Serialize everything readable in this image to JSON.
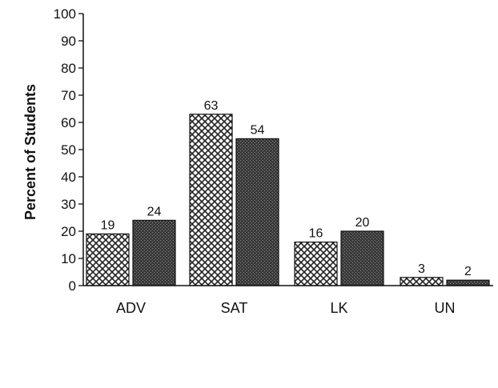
{
  "chart_data": {
    "type": "bar",
    "categories": [
      "ADV",
      "SAT",
      "LK",
      "UN"
    ],
    "series": [
      {
        "values": [
          19,
          63,
          16,
          3
        ],
        "pattern": "crosshatch",
        "color": "#ffffff"
      },
      {
        "values": [
          24,
          54,
          20,
          2
        ],
        "pattern": "dark-stipple",
        "color": "#3a3a3a"
      }
    ],
    "title": "",
    "xlabel": "",
    "ylabel": "Percent of Students",
    "ylim": [
      0,
      100
    ],
    "yticks": [
      0,
      10,
      20,
      30,
      40,
      50,
      60,
      70,
      80,
      90,
      100
    ],
    "data_labels": [
      [
        "19",
        "63",
        "16",
        "3"
      ],
      [
        "24",
        "54",
        "20",
        "2"
      ]
    ],
    "grid": false,
    "legend": "none"
  }
}
